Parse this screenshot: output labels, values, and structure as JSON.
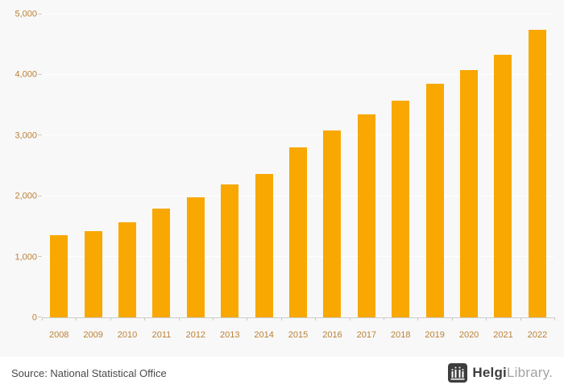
{
  "chart_data": {
    "type": "bar",
    "categories": [
      "2008",
      "2009",
      "2010",
      "2011",
      "2012",
      "2013",
      "2014",
      "2015",
      "2016",
      "2017",
      "2018",
      "2019",
      "2020",
      "2021",
      "2022"
    ],
    "values": [
      1350,
      1420,
      1570,
      1790,
      1980,
      2190,
      2370,
      2810,
      3090,
      3350,
      3580,
      3860,
      4080,
      4330,
      4750
    ],
    "title": "",
    "xlabel": "",
    "ylabel": "",
    "ylim": [
      0,
      5000
    ],
    "y_ticks": [
      0,
      1000,
      2000,
      3000,
      4000,
      5000
    ],
    "y_tick_labels": [
      "0",
      "1,000",
      "2,000",
      "3,000",
      "4,000",
      "5,000"
    ],
    "bar_color": "#F8A800",
    "grid": true,
    "legend": false,
    "legend_position": "none",
    "gridline_color": "#ffffff",
    "axis_label_color": "#bb8033"
  },
  "footer": {
    "source": "Source: National Statistical Office",
    "logo": {
      "bold": "Helgi",
      "light": "Library",
      "dot": "."
    }
  }
}
